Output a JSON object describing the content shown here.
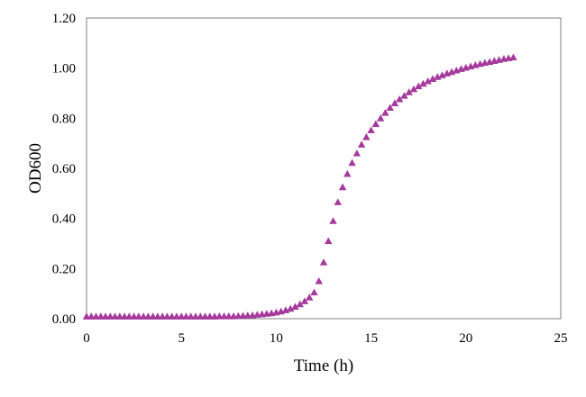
{
  "chart_data": {
    "type": "scatter",
    "title": "",
    "xlabel": "Time (h)",
    "ylabel": "OD600",
    "xlim": [
      0,
      25
    ],
    "ylim": [
      0,
      1.2
    ],
    "x_ticks": [
      "0",
      "5",
      "10",
      "15",
      "20",
      "25"
    ],
    "y_ticks": [
      "0.00",
      "0.20",
      "0.40",
      "0.60",
      "0.80",
      "1.00",
      "1.20"
    ],
    "grid": false,
    "legend": "none",
    "marker": "triangle",
    "marker_color": "#a53a9c",
    "series": [
      {
        "x": [
          0.0,
          0.25,
          0.5,
          0.75,
          1.0,
          1.25,
          1.5,
          1.75,
          2.0,
          2.25,
          2.5,
          2.75,
          3.0,
          3.25,
          3.5,
          3.75,
          4.0,
          4.25,
          4.5,
          4.75,
          5.0,
          5.25,
          5.5,
          5.75,
          6.0,
          6.25,
          6.5,
          6.75,
          7.0,
          7.25,
          7.5,
          7.75,
          8.0,
          8.25,
          8.5,
          8.75,
          9.0,
          9.25,
          9.5,
          9.75,
          10.0,
          10.25,
          10.5,
          10.75,
          11.0,
          11.25,
          11.5,
          11.75,
          12.0,
          12.25,
          12.5,
          12.75,
          13.0,
          13.25,
          13.5,
          13.75,
          14.0,
          14.25,
          14.5,
          14.75,
          15.0,
          15.25,
          15.5,
          15.75,
          16.0,
          16.25,
          16.5,
          16.75,
          17.0,
          17.25,
          17.5,
          17.75,
          18.0,
          18.25,
          18.5,
          18.75,
          19.0,
          19.25,
          19.5,
          19.75,
          20.0,
          20.25,
          20.5,
          20.75,
          21.0,
          21.25,
          21.5,
          21.75,
          22.0,
          22.25,
          22.5
        ],
        "y": [
          0.009,
          0.009,
          0.009,
          0.009,
          0.009,
          0.009,
          0.009,
          0.009,
          0.009,
          0.009,
          0.009,
          0.009,
          0.009,
          0.009,
          0.009,
          0.009,
          0.009,
          0.009,
          0.009,
          0.009,
          0.009,
          0.009,
          0.009,
          0.009,
          0.009,
          0.009,
          0.009,
          0.009,
          0.01,
          0.01,
          0.01,
          0.01,
          0.011,
          0.012,
          0.013,
          0.014,
          0.016,
          0.018,
          0.02,
          0.022,
          0.025,
          0.029,
          0.034,
          0.04,
          0.048,
          0.058,
          0.07,
          0.085,
          0.105,
          0.15,
          0.225,
          0.31,
          0.39,
          0.465,
          0.525,
          0.578,
          0.622,
          0.66,
          0.695,
          0.725,
          0.752,
          0.777,
          0.8,
          0.822,
          0.842,
          0.86,
          0.876,
          0.89,
          0.904,
          0.916,
          0.928,
          0.938,
          0.948,
          0.957,
          0.965,
          0.972,
          0.979,
          0.985,
          0.991,
          0.997,
          1.002,
          1.007,
          1.012,
          1.017,
          1.021,
          1.025,
          1.029,
          1.033,
          1.037,
          1.04,
          1.043
        ]
      }
    ]
  }
}
